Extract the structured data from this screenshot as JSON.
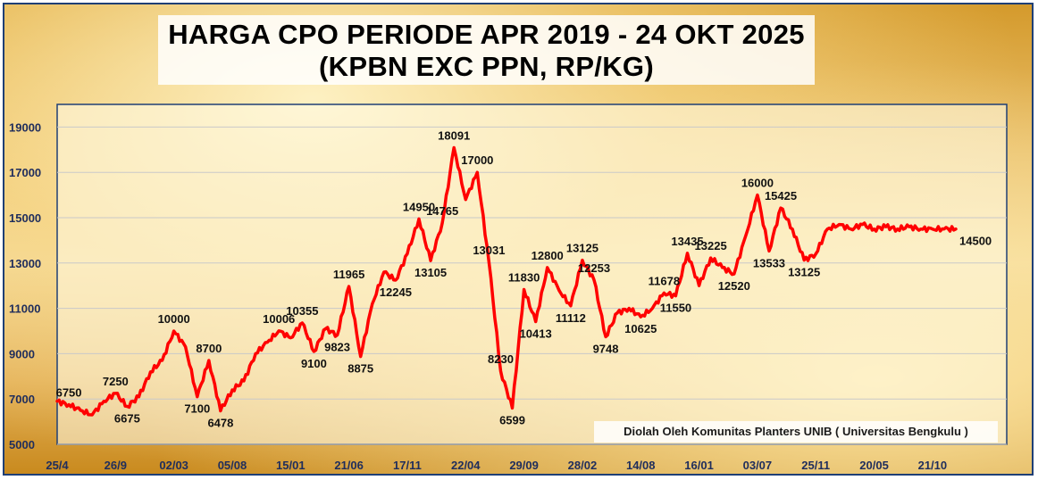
{
  "title": {
    "line1": "HARGA CPO PERIODE APR 2019 - 24 OKT 2025",
    "line2": "(KPBN EXC PPN, RP/KG)"
  },
  "credit": "Diolah Oleh Komunitas Planters UNIB ( Universitas Bengkulu )",
  "colors": {
    "line": "#ff0000",
    "axis_text": "#1f2d5c",
    "frame": "#1f3f75",
    "plot_bg": "#fffbe8"
  },
  "chart_data": {
    "type": "line",
    "title": "HARGA CPO PERIODE APR 2019 - 24 OKT 2025 (KPBN EXC PPN, RP/KG)",
    "xlabel": "",
    "ylabel": "",
    "ylim": [
      5000,
      20000
    ],
    "yticks": [
      5000,
      7000,
      9000,
      11000,
      13000,
      15000,
      17000,
      19000
    ],
    "ytick_labels": [
      "5000",
      "7000",
      "9000",
      "11000",
      "13000",
      "15000",
      "17000",
      "19000"
    ],
    "grid": true,
    "x_tick_labels": [
      "25/4",
      "26/9",
      "02/03",
      "05/08",
      "15/01",
      "21/06",
      "17/11",
      "22/04",
      "29/09",
      "28/02",
      "14/08",
      "16/01",
      "03/07",
      "25/11",
      "20/05",
      "21/10"
    ],
    "x_tick_index": [
      0,
      5,
      10,
      15,
      20,
      25,
      30,
      35,
      40,
      45,
      50,
      55,
      60,
      65,
      70,
      75
    ],
    "series": [
      {
        "name": "",
        "x": [
          0,
          1,
          2,
          3,
          4,
          5,
          6,
          7,
          8,
          9,
          10,
          11,
          12,
          13,
          14,
          15,
          16,
          17,
          18,
          19,
          20,
          21,
          22,
          23,
          24,
          25,
          26,
          27,
          28,
          29,
          30,
          31,
          32,
          33,
          34,
          35,
          36,
          37,
          38,
          39,
          40,
          41,
          42,
          43,
          44,
          45,
          46,
          47,
          48,
          49,
          50,
          51,
          52,
          53,
          54,
          55,
          56,
          57,
          58,
          59,
          60,
          61,
          62,
          63,
          64,
          65,
          66,
          67,
          68,
          69,
          70,
          71,
          72,
          73,
          74,
          75,
          76,
          77
        ],
        "values": [
          6900,
          6750,
          6500,
          6300,
          6900,
          7250,
          6675,
          7100,
          8200,
          8700,
          10000,
          9300,
          7100,
          8700,
          6478,
          7400,
          7800,
          9000,
          9500,
          10006,
          9700,
          10355,
          9100,
          10100,
          9823,
          11965,
          8875,
          11200,
          12600,
          12245,
          13400,
          14950,
          13105,
          14765,
          18091,
          15800,
          17000,
          13031,
          8230,
          6599,
          11830,
          10413,
          12800,
          11800,
          11112,
          13125,
          12253,
          9748,
          10800,
          11000,
          10625,
          11000,
          11678,
          11550,
          13435,
          12000,
          13225,
          12800,
          12520,
          14200,
          16000,
          13533,
          15425,
          14500,
          13125,
          13400,
          14500,
          14700,
          14500,
          14700,
          14500,
          14600,
          14500,
          14600,
          14500,
          14500,
          14500,
          14500
        ]
      }
    ],
    "annotations": [
      {
        "i": 1,
        "label": "6750"
      },
      {
        "i": 5,
        "label": "7250"
      },
      {
        "i": 6,
        "label": "6675"
      },
      {
        "i": 10,
        "label": "10000"
      },
      {
        "i": 12,
        "label": "7100"
      },
      {
        "i": 13,
        "label": "8700"
      },
      {
        "i": 14,
        "label": "6478"
      },
      {
        "i": 19,
        "label": "10006"
      },
      {
        "i": 21,
        "label": "10355"
      },
      {
        "i": 22,
        "label": "9100"
      },
      {
        "i": 24,
        "label": "9823"
      },
      {
        "i": 25,
        "label": "11965"
      },
      {
        "i": 26,
        "label": "8875"
      },
      {
        "i": 29,
        "label": "12245"
      },
      {
        "i": 31,
        "label": "14950"
      },
      {
        "i": 32,
        "label": "13105"
      },
      {
        "i": 33,
        "label": "14765"
      },
      {
        "i": 34,
        "label": "18091"
      },
      {
        "i": 36,
        "label": "17000"
      },
      {
        "i": 37,
        "label": "13031"
      },
      {
        "i": 38,
        "label": "8230"
      },
      {
        "i": 39,
        "label": "6599"
      },
      {
        "i": 40,
        "label": "11830"
      },
      {
        "i": 41,
        "label": "10413"
      },
      {
        "i": 42,
        "label": "12800"
      },
      {
        "i": 44,
        "label": "11112"
      },
      {
        "i": 45,
        "label": "13125"
      },
      {
        "i": 46,
        "label": "12253"
      },
      {
        "i": 47,
        "label": "9748"
      },
      {
        "i": 50,
        "label": "10625"
      },
      {
        "i": 52,
        "label": "11678"
      },
      {
        "i": 53,
        "label": "11550"
      },
      {
        "i": 54,
        "label": "13435"
      },
      {
        "i": 56,
        "label": "13225"
      },
      {
        "i": 58,
        "label": "12520"
      },
      {
        "i": 60,
        "label": "16000"
      },
      {
        "i": 61,
        "label": "13533"
      },
      {
        "i": 62,
        "label": "15425"
      },
      {
        "i": 64,
        "label": "13125"
      },
      {
        "i": 77,
        "label": "14500"
      }
    ]
  }
}
